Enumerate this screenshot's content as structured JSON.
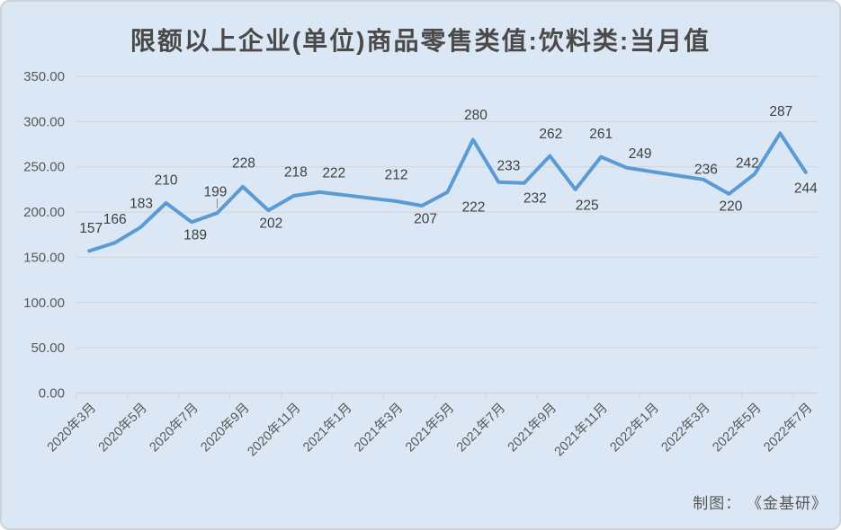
{
  "title": "限额以上企业(单位)商品零售类值:饮料类:当月值",
  "credit": "制图： 《金基研》",
  "colors": {
    "background": "#dbe7f4",
    "line": "#5b9bd5",
    "grid": "#d2d4d6",
    "title_text": "#4a4a4a",
    "axis_text": "#595959",
    "label_text": "#3f3f3f",
    "leader": "#8a9099"
  },
  "chart_data": {
    "type": "line",
    "title": "限额以上企业(单位)商品零售类值:饮料类:当月值",
    "x": [
      "2020年3月",
      "2020年4月",
      "2020年5月",
      "2020年6月",
      "2020年7月",
      "2020年8月",
      "2020年9月",
      "2020年10月",
      "2020年11月",
      "2020年12月",
      "2021年1月",
      "2021年2月",
      "2021年3月",
      "2021年4月",
      "2021年5月",
      "2021年6月",
      "2021年7月",
      "2021年8月",
      "2021年9月",
      "2021年10月",
      "2021年11月",
      "2021年12月",
      "2022年1月",
      "2022年2月",
      "2022年3月",
      "2022年4月",
      "2022年5月",
      "2022年6月",
      "2022年7月"
    ],
    "values": [
      157,
      166,
      183,
      210,
      189,
      199,
      228,
      202,
      218,
      222,
      218.7,
      215.3,
      212,
      207,
      222,
      280,
      233,
      232,
      262,
      225,
      261,
      249,
      244.7,
      240.3,
      236,
      220,
      242,
      287,
      244
    ],
    "point_labels": [
      "157",
      "166",
      "183",
      "210",
      "189",
      "199",
      "228",
      "202",
      "218",
      "222",
      "",
      "",
      "212",
      "207",
      "222",
      "280",
      "233",
      "232",
      "262",
      "225",
      "261",
      "249",
      "",
      "",
      "236",
      "220",
      "242",
      "287",
      "244"
    ],
    "x_tick_labels": [
      "2020年3月",
      "2020年5月",
      "2020年7月",
      "2020年9月",
      "2020年11月",
      "2021年1月",
      "2021年3月",
      "2021年5月",
      "2021年7月",
      "2021年9月",
      "2021年11月",
      "2022年1月",
      "2022年3月",
      "2022年5月",
      "2022年7月"
    ],
    "y_tick_labels": [
      "0.00",
      "50.00",
      "100.00",
      "150.00",
      "200.00",
      "250.00",
      "300.00",
      "350.00"
    ],
    "ylim": [
      0,
      350
    ],
    "y_step": 50,
    "grid": true,
    "legend": false,
    "xlabel": "",
    "ylabel": ""
  }
}
